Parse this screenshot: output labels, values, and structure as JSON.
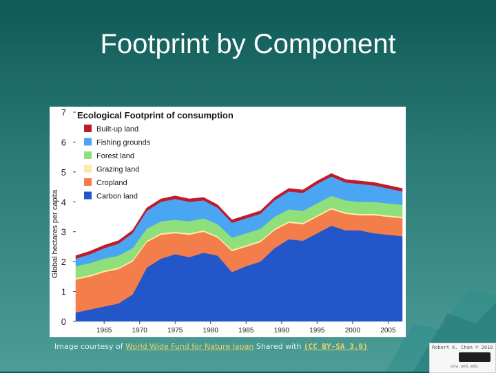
{
  "slide": {
    "title": "Footprint by Component"
  },
  "caption": {
    "prefix": "Image courtesy of ",
    "source_link": "World Wide Fund for Nature Japan",
    "middle": " Shared with ",
    "license": "(CC BY-SA 3.0)"
  },
  "badge": {
    "credit": "Robert K. Chan © 2010",
    "site": "ocw.unb.edu"
  },
  "colors": {
    "background_top": "#0f5a56",
    "background_bottom": "#4c9c97",
    "title": "#ffffff",
    "link": "#e9d46a"
  },
  "chart_data": {
    "type": "area",
    "stacked": true,
    "title": "Ecological Footprint of consumption",
    "xlabel": "",
    "ylabel": "Global hectares per capita",
    "xlim": [
      1961,
      2007
    ],
    "ylim": [
      0,
      7
    ],
    "xticks": [
      1965,
      1970,
      1975,
      1980,
      1985,
      1990,
      1995,
      2000,
      2005
    ],
    "yticks": [
      0,
      1,
      2,
      3,
      4,
      5,
      6,
      7
    ],
    "grid": false,
    "legend_position": "top-left",
    "legend_order": [
      "Built-up land",
      "Fishing grounds",
      "Forest land",
      "Grazing land",
      "Cropland",
      "Carbon land"
    ],
    "x": [
      1961,
      1963,
      1965,
      1967,
      1969,
      1971,
      1973,
      1975,
      1977,
      1979,
      1981,
      1983,
      1985,
      1987,
      1989,
      1991,
      1993,
      1995,
      1997,
      1999,
      2001,
      2003,
      2005,
      2007
    ],
    "series": [
      {
        "name": "Carbon land",
        "color": "#2356c8",
        "values": [
          0.3,
          0.4,
          0.5,
          0.6,
          0.9,
          1.8,
          2.1,
          2.25,
          2.15,
          2.3,
          2.2,
          1.65,
          1.85,
          2.0,
          2.45,
          2.75,
          2.7,
          2.95,
          3.2,
          3.05,
          3.05,
          2.95,
          2.9,
          2.85
        ]
      },
      {
        "name": "Cropland",
        "color": "#f47e4b",
        "values": [
          1.1,
          1.1,
          1.15,
          1.15,
          1.1,
          0.85,
          0.8,
          0.7,
          0.75,
          0.7,
          0.6,
          0.7,
          0.65,
          0.65,
          0.6,
          0.55,
          0.55,
          0.55,
          0.55,
          0.55,
          0.5,
          0.6,
          0.6,
          0.6
        ]
      },
      {
        "name": "Grazing land",
        "color": "#fbeaa8",
        "values": [
          0.05,
          0.05,
          0.05,
          0.05,
          0.05,
          0.05,
          0.05,
          0.05,
          0.05,
          0.05,
          0.05,
          0.05,
          0.05,
          0.05,
          0.05,
          0.05,
          0.05,
          0.05,
          0.05,
          0.05,
          0.05,
          0.05,
          0.05,
          0.05
        ]
      },
      {
        "name": "Forest land",
        "color": "#8fe07a",
        "values": [
          0.4,
          0.4,
          0.4,
          0.4,
          0.4,
          0.4,
          0.4,
          0.4,
          0.4,
          0.4,
          0.4,
          0.4,
          0.4,
          0.4,
          0.4,
          0.4,
          0.4,
          0.4,
          0.4,
          0.4,
          0.4,
          0.4,
          0.4,
          0.4
        ]
      },
      {
        "name": "Fishing grounds",
        "color": "#4aa6f2",
        "values": [
          0.25,
          0.3,
          0.35,
          0.4,
          0.5,
          0.6,
          0.65,
          0.7,
          0.65,
          0.6,
          0.55,
          0.5,
          0.5,
          0.5,
          0.55,
          0.6,
          0.6,
          0.65,
          0.65,
          0.6,
          0.6,
          0.55,
          0.5,
          0.45
        ]
      },
      {
        "name": "Built-up land",
        "color": "#c01b2a",
        "values": [
          0.1,
          0.1,
          0.1,
          0.1,
          0.1,
          0.1,
          0.1,
          0.1,
          0.1,
          0.1,
          0.1,
          0.1,
          0.1,
          0.1,
          0.1,
          0.1,
          0.1,
          0.1,
          0.1,
          0.1,
          0.1,
          0.1,
          0.1,
          0.1
        ]
      }
    ]
  }
}
